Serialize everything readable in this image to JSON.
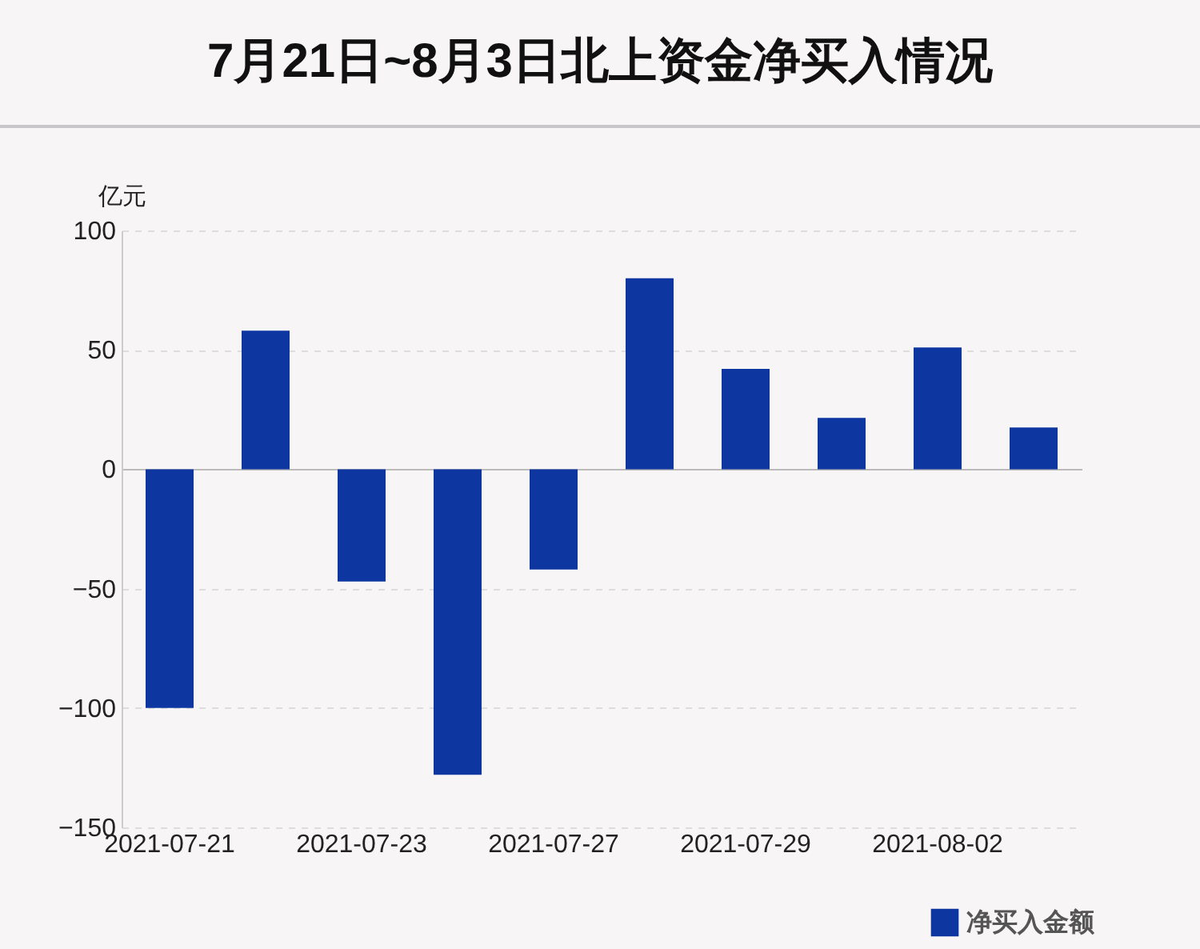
{
  "chart_data": {
    "type": "bar",
    "title": "7月21日~8月3日北上资金净买入情况",
    "ylabel": "亿元",
    "categories": [
      "2021-07-21",
      null,
      "2021-07-23",
      null,
      "2021-07-27",
      null,
      "2021-07-29",
      null,
      "2021-08-02",
      null
    ],
    "series": [
      {
        "name": "净买入金额",
        "color": "#0e36a0",
        "values": [
          -100,
          58,
          -47,
          -128,
          -42,
          80,
          42,
          21.5,
          51,
          17.5
        ]
      }
    ],
    "ylim": [
      -150,
      100
    ],
    "yticks": [
      -150,
      -100,
      -50,
      0,
      50,
      100
    ],
    "grid": "y",
    "legend": "bottom right"
  }
}
